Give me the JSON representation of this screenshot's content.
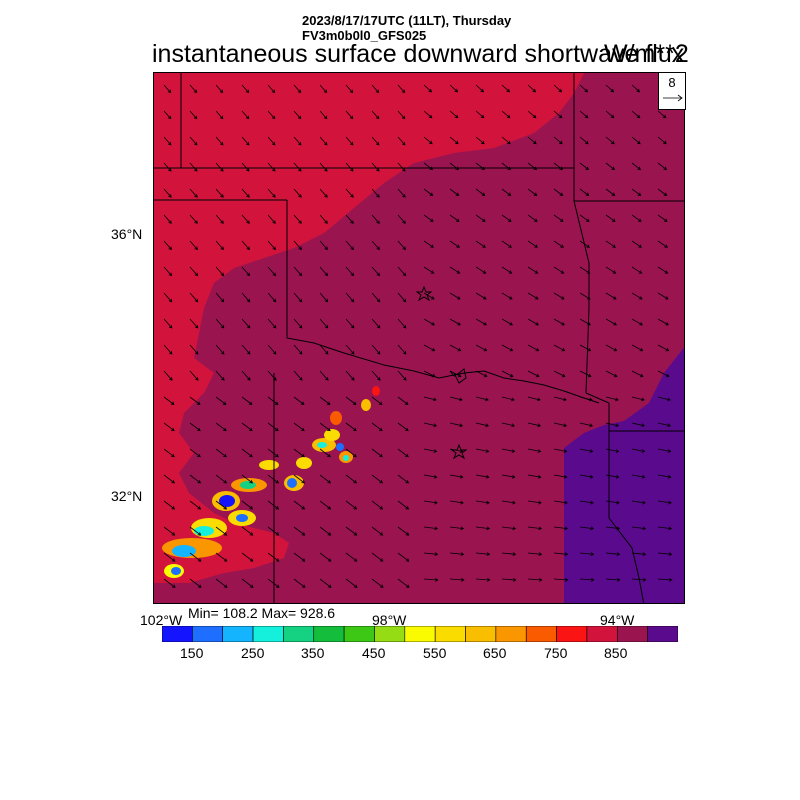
{
  "header": {
    "datetime": "2023/8/17/17UTC (11LT), Thursday",
    "model": "FV3m0b0l0_GFS025",
    "title": "instantaneous surface downward shortwave flux",
    "units": "W/m**2"
  },
  "reference_vector": {
    "value": "8"
  },
  "axes": {
    "lat_labels": [
      "36°N",
      "32°N"
    ],
    "lon_labels": [
      "102°W",
      "98°W",
      "94°W"
    ]
  },
  "stats": {
    "text": "Min= 108.2 Max= 928.6",
    "min": 108.2,
    "max": 928.6
  },
  "colorbar": {
    "colors": [
      "#1414ff",
      "#1e6eff",
      "#14b4ff",
      "#14f0dc",
      "#14d282",
      "#14be3c",
      "#3cc814",
      "#96dc14",
      "#fafa00",
      "#fadc00",
      "#fabe00",
      "#fa9600",
      "#fa5a00",
      "#fa1414",
      "#d2143c",
      "#9a1450",
      "#5a0a8c"
    ],
    "labels": [
      "150",
      "250",
      "350",
      "450",
      "550",
      "650",
      "750",
      "850"
    ]
  },
  "map_colors": {
    "high": "#5a0a8c",
    "mid": "#9a1450",
    "low": "#d2143c"
  }
}
